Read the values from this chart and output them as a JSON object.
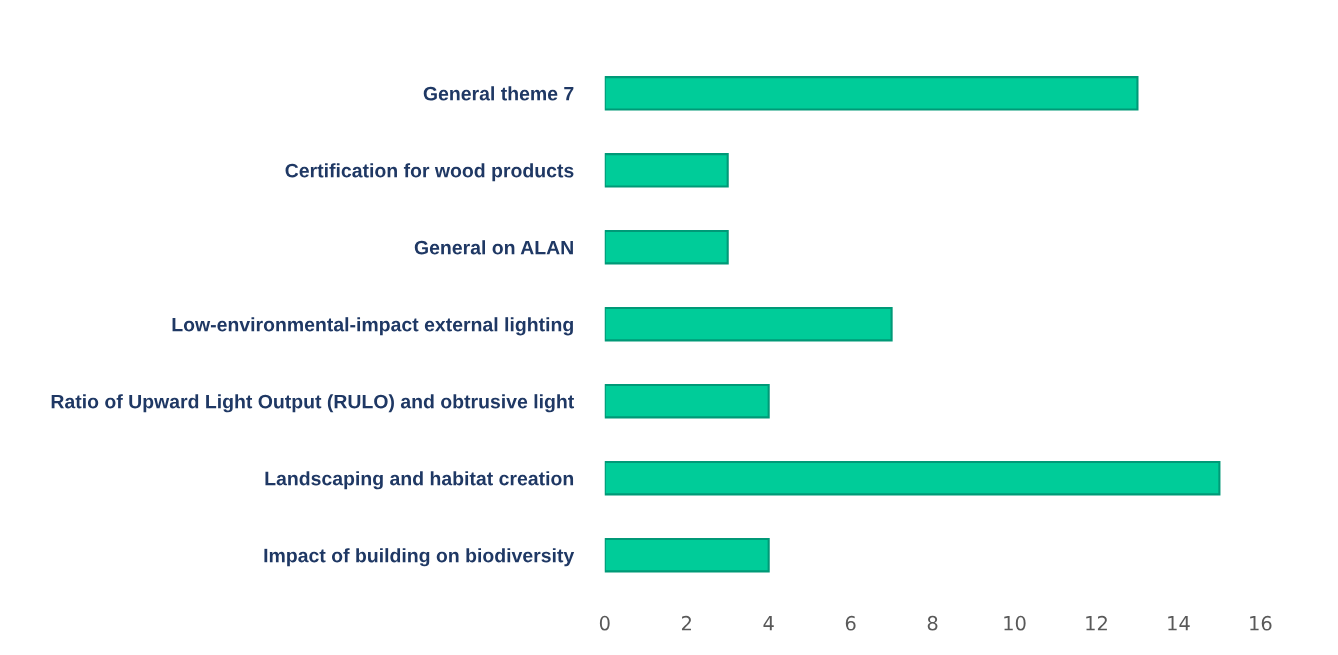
{
  "chart_data": {
    "type": "bar",
    "orientation": "horizontal",
    "categories": [
      "General theme 7",
      "Certification for wood products",
      "General on ALAN",
      "Low-environmental-impact external lighting",
      "Ratio of Upward Light Output (RULO) and obtrusive light",
      "Landscaping and habitat creation",
      "Impact of building on biodiversity"
    ],
    "values": [
      13,
      3,
      3,
      7,
      4,
      15,
      4
    ],
    "color": "#00cc99",
    "xlim": [
      0,
      16
    ],
    "xticks": [
      0,
      2,
      4,
      6,
      8,
      10,
      12,
      14,
      16
    ],
    "grid": false,
    "legend": false
  }
}
